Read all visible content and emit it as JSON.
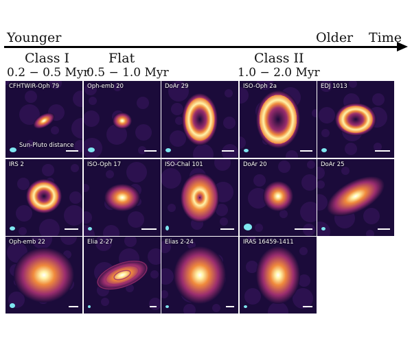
{
  "timeline": {
    "left_label": "Younger",
    "right_label": "Older",
    "time_label": "Time"
  },
  "classes": [
    {
      "name": "Class I",
      "age": "0.2 − 0.5 Myr"
    },
    {
      "name": "Flat",
      "age": "0.5 − 1.0 Myr"
    },
    {
      "name": "Class II",
      "age": "1.0 − 2.0 Myr"
    }
  ],
  "scale_label": "Sun-Pluto distance",
  "panels": [
    {
      "label": "CFHTWIR-Oph 79",
      "disk_type": "compact"
    },
    {
      "label": "Oph-emb 20",
      "disk_type": "compact"
    },
    {
      "label": "DoAr 29",
      "disk_type": "ring"
    },
    {
      "label": "ISO-Oph 2a",
      "disk_type": "ring"
    },
    {
      "label": "EDJ 1013",
      "disk_type": "ring"
    },
    {
      "label": "IRS 2",
      "disk_type": "ring"
    },
    {
      "label": "ISO-Oph 17",
      "disk_type": "compact"
    },
    {
      "label": "ISO-Chal 101",
      "disk_type": "noisy"
    },
    {
      "label": "DoAr 20",
      "disk_type": "compact"
    },
    {
      "label": "DoAr 25",
      "disk_type": "extended"
    },
    {
      "label": "Oph-emb 22",
      "disk_type": "extended"
    },
    {
      "label": "Elia 2-27",
      "disk_type": "spiral"
    },
    {
      "label": "Elias 2-24",
      "disk_type": "extended"
    },
    {
      "label": "IRAS 16459-1411",
      "disk_type": "extended"
    }
  ],
  "colors": {
    "background": "#1b0b3a",
    "beam": "#7fe6f0",
    "disk_core": "#fff3a8",
    "disk_mid": "#f08a3c",
    "disk_outer": "#9a2d6e"
  }
}
